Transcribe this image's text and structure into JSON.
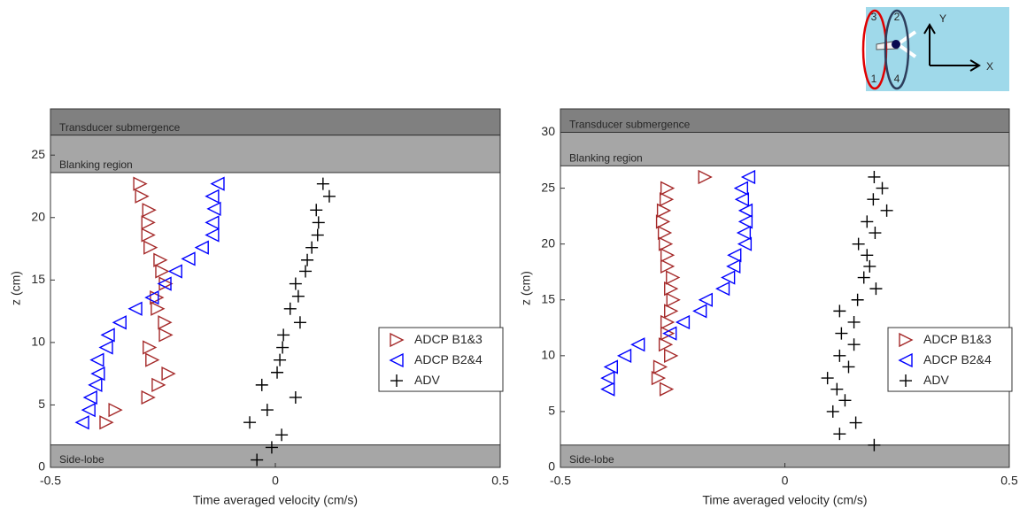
{
  "chart_data": [
    {
      "type": "scatter",
      "xlabel": "Time averaged velocity (cm/s)",
      "ylabel": "z (cm)",
      "xlim": [
        -0.5,
        0.5
      ],
      "ylim": [
        0,
        28.7
      ],
      "xticks": [
        -0.5,
        0,
        0.5
      ],
      "yticks": [
        0,
        5,
        10,
        15,
        20,
        25
      ],
      "legend": "right",
      "regions": [
        {
          "label": "Transducer submergence",
          "from": 26.6,
          "to": 28.7,
          "color": "#808080"
        },
        {
          "label": "Blanking region",
          "from": 23.6,
          "to": 26.6,
          "color": "#a6a6a6"
        },
        {
          "label": "Side-lobe",
          "from": 0,
          "to": 1.8,
          "color": "#a6a6a6"
        }
      ],
      "series": [
        {
          "name": "ADCP B1&3",
          "color": "#a52a2a",
          "marker": "triangle-right",
          "x": [
            -0.301,
            -0.297,
            -0.281,
            -0.283,
            -0.283,
            -0.278,
            -0.256,
            -0.252,
            -0.244,
            -0.264,
            -0.262,
            -0.246,
            -0.244,
            -0.28,
            -0.274,
            -0.238,
            -0.26,
            -0.283,
            -0.356,
            -0.376
          ],
          "values": [
            22.7,
            21.7,
            20.6,
            19.6,
            18.6,
            17.6,
            16.6,
            15.7,
            14.7,
            13.6,
            12.7,
            11.6,
            10.6,
            9.6,
            8.6,
            7.5,
            6.6,
            5.6,
            4.6,
            3.6
          ]
        },
        {
          "name": "ADCP B2&4",
          "color": "#0000ff",
          "marker": "triangle-left",
          "x": [
            -0.128,
            -0.14,
            -0.136,
            -0.14,
            -0.14,
            -0.163,
            -0.193,
            -0.222,
            -0.246,
            -0.274,
            -0.311,
            -0.346,
            -0.372,
            -0.376,
            -0.396,
            -0.394,
            -0.4,
            -0.411,
            -0.415,
            -0.429
          ],
          "values": [
            22.7,
            21.7,
            20.7,
            19.6,
            18.6,
            17.6,
            16.7,
            15.7,
            14.7,
            13.6,
            12.7,
            11.6,
            10.6,
            9.6,
            8.6,
            7.5,
            6.6,
            5.6,
            4.6,
            3.6
          ]
        },
        {
          "name": "ADV",
          "color": "#000000",
          "marker": "plus",
          "x": [
            0.106,
            0.12,
            0.091,
            0.096,
            0.094,
            0.081,
            0.071,
            0.067,
            0.045,
            0.051,
            0.033,
            0.055,
            0.018,
            0.016,
            0.01,
            0.004,
            -0.03,
            0.045,
            -0.018,
            -0.057,
            0.014,
            -0.008,
            -0.041
          ],
          "values": [
            22.7,
            21.7,
            20.6,
            19.6,
            18.6,
            17.6,
            16.6,
            15.7,
            14.7,
            13.7,
            12.7,
            11.6,
            10.6,
            9.6,
            8.6,
            7.6,
            6.6,
            5.6,
            4.6,
            3.6,
            2.6,
            1.6,
            0.6
          ]
        }
      ]
    },
    {
      "type": "scatter",
      "xlabel": "Time averaged velocity (cm/s)",
      "ylabel": "z (cm)",
      "xlim": [
        -0.5,
        0.5
      ],
      "ylim": [
        0,
        32.1
      ],
      "xticks": [
        -0.5,
        0,
        0.5
      ],
      "yticks": [
        0,
        5,
        10,
        15,
        20,
        25,
        30
      ],
      "legend": "right",
      "regions": [
        {
          "label": "Transducer submergence",
          "from": 30,
          "to": 32.1,
          "color": "#808080"
        },
        {
          "label": "Blanking region",
          "from": 27,
          "to": 30,
          "color": "#a6a6a6"
        },
        {
          "label": "Side-lobe",
          "from": 0,
          "to": 2,
          "color": "#a6a6a6"
        }
      ],
      "series": [
        {
          "name": "ADCP B1&3",
          "color": "#a52a2a",
          "marker": "triangle-right",
          "x": [
            -0.178,
            -0.262,
            -0.264,
            -0.27,
            -0.272,
            -0.268,
            -0.266,
            -0.262,
            -0.262,
            -0.25,
            -0.254,
            -0.249,
            -0.254,
            -0.262,
            -0.262,
            -0.266,
            -0.254,
            -0.278,
            -0.282,
            -0.264
          ],
          "values": [
            26,
            25,
            24,
            23,
            22,
            21,
            20,
            19,
            18,
            17,
            16,
            15,
            14,
            13,
            12,
            11,
            10,
            9,
            8,
            7
          ]
        },
        {
          "name": "ADCP B2&4",
          "color": "#0000ff",
          "marker": "triangle-left",
          "x": [
            -0.081,
            -0.097,
            -0.095,
            -0.087,
            -0.087,
            -0.091,
            -0.089,
            -0.112,
            -0.114,
            -0.126,
            -0.138,
            -0.176,
            -0.189,
            -0.227,
            -0.256,
            -0.327,
            -0.357,
            -0.387,
            -0.394,
            -0.394
          ],
          "values": [
            26,
            25,
            24,
            23,
            22,
            21,
            20,
            19,
            18,
            17,
            16,
            15,
            14,
            13,
            12,
            11,
            10,
            9,
            8,
            7
          ]
        },
        {
          "name": "ADV",
          "color": "#000000",
          "marker": "plus",
          "x": [
            0.199,
            0.217,
            0.197,
            0.227,
            0.183,
            0.201,
            0.164,
            0.183,
            0.189,
            0.176,
            0.203,
            0.162,
            0.122,
            0.154,
            0.126,
            0.154,
            0.122,
            0.142,
            0.095,
            0.116,
            0.134,
            0.107,
            0.158,
            0.122,
            0.199
          ],
          "values": [
            26,
            25,
            24,
            23,
            22,
            21,
            20,
            19,
            18,
            17,
            16,
            15,
            14,
            13,
            12,
            11,
            10,
            9,
            8,
            7,
            6,
            5,
            4,
            3,
            2
          ]
        }
      ]
    }
  ],
  "inset": {
    "labels": [
      "3",
      "2",
      "1",
      "4"
    ],
    "axes": [
      "Y",
      "X"
    ]
  }
}
